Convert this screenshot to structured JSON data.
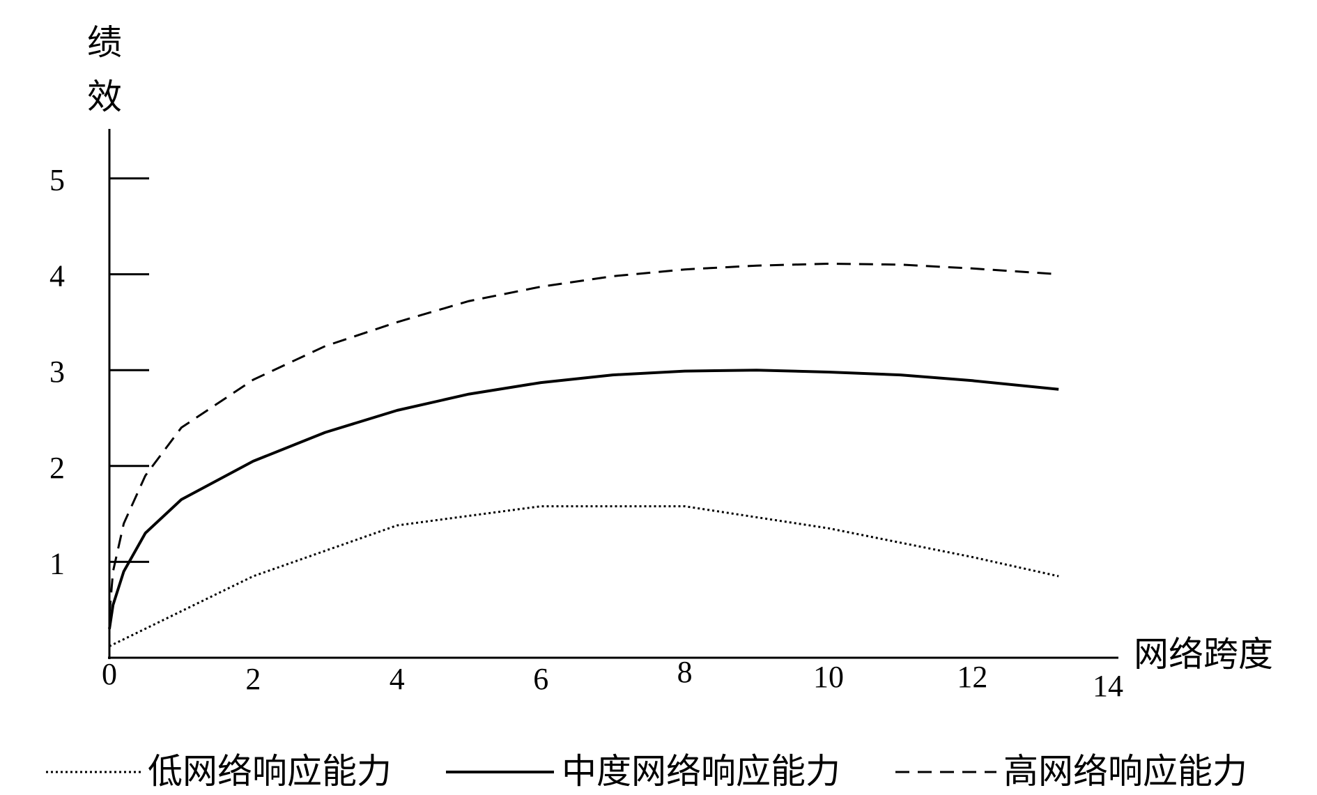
{
  "chart_data": {
    "type": "line",
    "title": "",
    "ylabel": "绩效",
    "xlabel": "网络跨度",
    "xlim": [
      0,
      14
    ],
    "ylim": [
      0,
      5
    ],
    "x_ticks": [
      "0",
      "2",
      "4",
      "6",
      "8",
      "10",
      "12",
      "14"
    ],
    "y_ticks": [
      "1",
      "2",
      "3",
      "4",
      "5"
    ],
    "legend_position": "bottom",
    "series": [
      {
        "name": "低网络响应能力",
        "style": "dotted",
        "x": [
          0,
          2,
          4,
          6,
          8,
          10,
          12,
          13.2
        ],
        "y": [
          0.12,
          0.85,
          1.38,
          1.58,
          1.58,
          1.35,
          1.05,
          0.85
        ]
      },
      {
        "name": "中度网络响应能力",
        "style": "solid",
        "x": [
          0,
          0.05,
          0.2,
          0.5,
          1,
          2,
          3,
          4,
          5,
          6,
          7,
          8,
          9,
          10,
          11,
          12,
          13.2
        ],
        "y": [
          0.3,
          0.55,
          0.9,
          1.3,
          1.65,
          2.05,
          2.35,
          2.58,
          2.75,
          2.87,
          2.95,
          2.99,
          3.0,
          2.98,
          2.95,
          2.89,
          2.8
        ]
      },
      {
        "name": "高网络响应能力",
        "style": "dashed",
        "x": [
          0,
          0.05,
          0.2,
          0.5,
          1,
          2,
          3,
          4,
          5,
          6,
          7,
          8,
          9,
          10,
          11,
          12,
          13.2
        ],
        "y": [
          0.45,
          0.9,
          1.4,
          1.9,
          2.4,
          2.9,
          3.25,
          3.5,
          3.72,
          3.87,
          3.98,
          4.05,
          4.09,
          4.11,
          4.1,
          4.06,
          4.0
        ]
      }
    ]
  }
}
